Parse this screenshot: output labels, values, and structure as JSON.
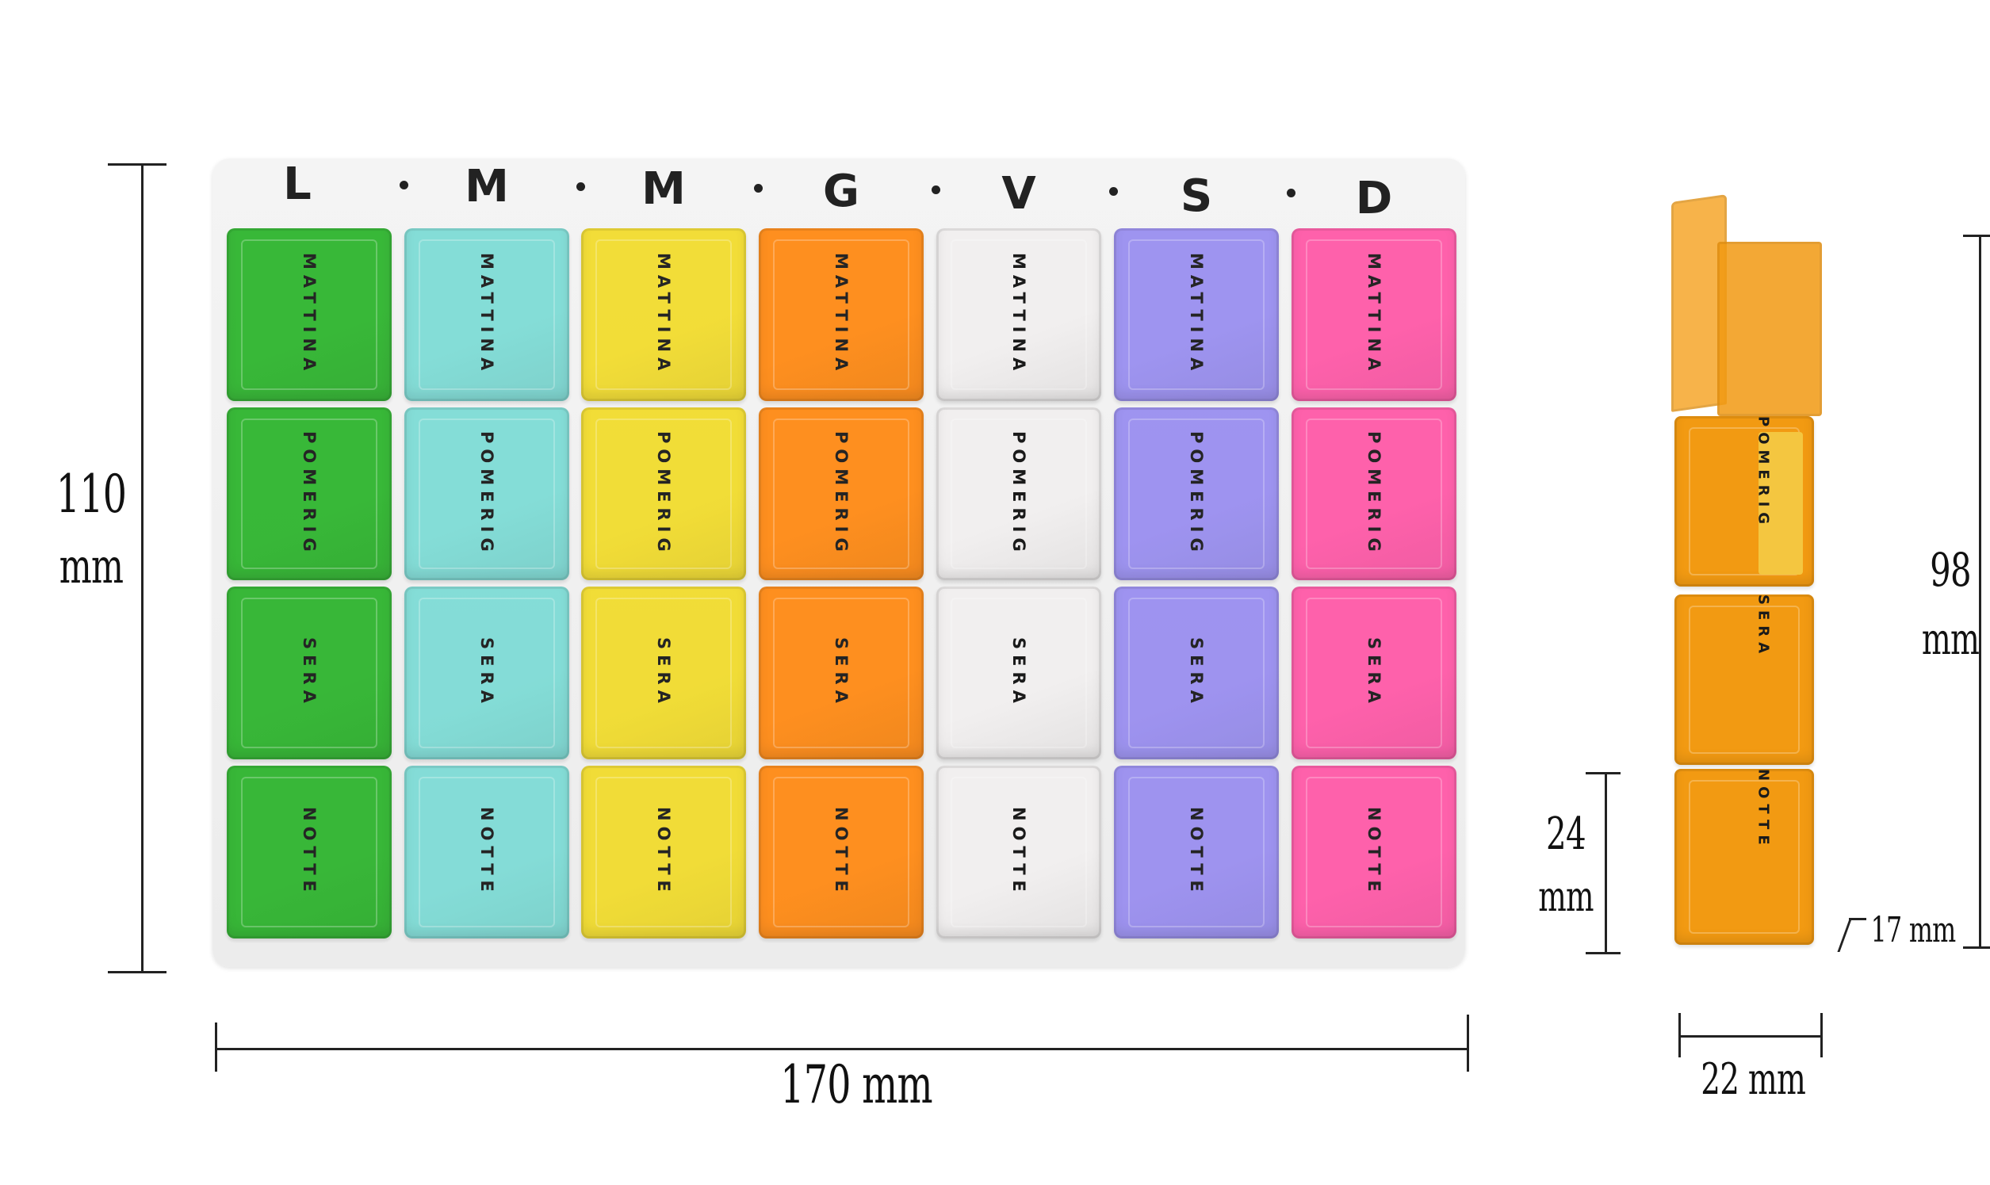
{
  "days": [
    "L",
    "M",
    "M",
    "G",
    "V",
    "S",
    "D"
  ],
  "slots": [
    "MATTINA",
    "POMERIG",
    "SERA",
    "NOTTE"
  ],
  "colors": [
    "#2fb52f",
    "#7fdcd6",
    "#f2dc2e",
    "#ff8a14",
    "#f1efef",
    "#9a8ff0",
    "#ff5aa8"
  ],
  "side_view": {
    "color": "#f29a12",
    "slots": [
      "POMERIG",
      "SERA",
      "NOTTE"
    ]
  },
  "dimensions": {
    "height_total": {
      "value": "110",
      "unit": "mm"
    },
    "width_total": "170 mm",
    "side_height": {
      "value": "98",
      "unit": "mm"
    },
    "compartment_height": {
      "value": "24",
      "unit": "mm"
    },
    "depth": "17 mm",
    "side_width": "22 mm"
  }
}
